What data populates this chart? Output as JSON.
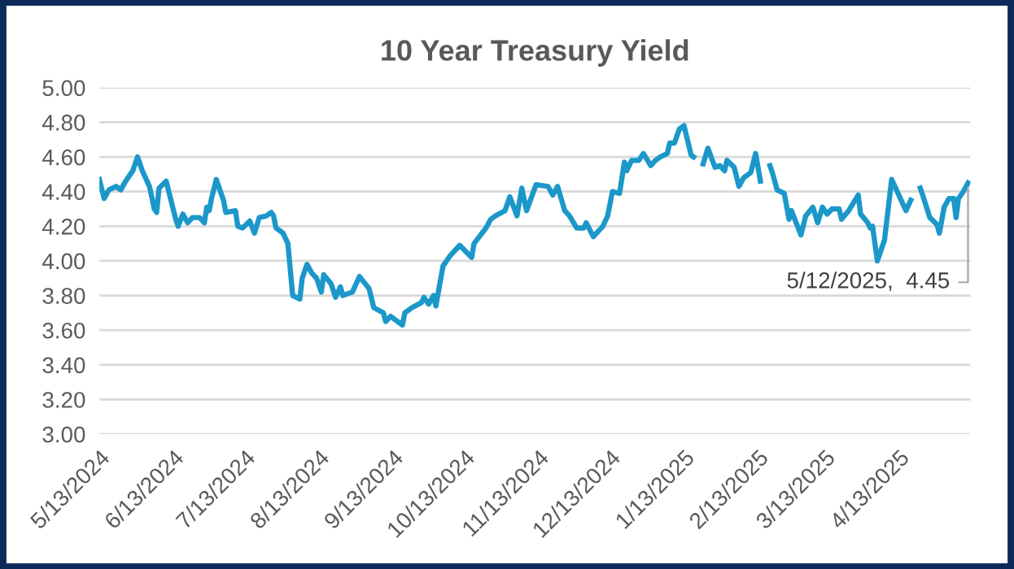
{
  "chart_data": {
    "type": "line",
    "title": "10 Year Treasury Yield",
    "x": [
      "2024-05-13",
      "2024-05-15",
      "2024-05-17",
      "2024-05-20",
      "2024-05-22",
      "2024-05-24",
      "2024-05-27",
      "2024-05-29",
      "2024-05-31",
      "2024-06-03",
      "2024-06-05",
      "2024-06-06",
      "2024-06-07",
      "2024-06-10",
      "2024-06-14",
      "2024-06-15",
      "2024-06-17",
      "2024-06-19",
      "2024-06-21",
      "2024-06-24",
      "2024-06-26",
      "2024-06-27",
      "2024-06-28",
      "2024-06-29",
      "2024-07-01",
      "2024-07-04",
      "2024-07-05",
      "2024-07-09",
      "2024-07-10",
      "2024-07-12",
      "2024-07-15",
      "2024-07-17",
      "2024-07-19",
      "2024-07-22",
      "2024-07-24",
      "2024-07-25",
      "2024-07-26",
      "2024-07-29",
      "2024-07-31",
      "2024-08-02",
      "2024-08-05",
      "2024-08-06",
      "2024-08-08",
      "2024-08-10",
      "2024-08-12",
      "2024-08-14",
      "2024-08-15",
      "2024-08-18",
      "2024-08-20",
      "2024-08-22",
      "2024-08-23",
      "2024-08-27",
      "2024-08-30",
      "2024-09-03",
      "2024-09-05",
      "2024-09-09",
      "2024-09-10",
      "2024-09-12",
      "2024-09-17",
      "2024-09-18",
      "2024-09-21",
      "2024-09-25",
      "2024-09-26",
      "2024-09-28",
      "2024-09-30",
      "2024-10-01",
      "2024-10-04",
      "2024-10-07",
      "2024-10-11",
      "2024-10-16",
      "2024-10-17",
      "2024-10-22",
      "2024-10-24",
      "2024-10-26",
      "2024-10-30",
      "2024-11-01",
      "2024-11-04",
      "2024-11-06",
      "2024-11-08",
      "2024-11-12",
      "2024-11-17",
      "2024-11-19",
      "2024-11-21",
      "2024-11-24",
      "2024-11-26",
      "2024-11-29",
      "2024-12-02",
      "2024-12-03",
      "2024-12-06",
      "2024-12-10",
      "2024-12-12",
      "2024-12-14",
      "2024-12-17",
      "2024-12-19",
      "2024-12-20",
      "2024-12-22",
      "2024-12-25",
      "2024-12-27",
      "2024-12-30",
      "2025-01-01",
      "2025-01-03",
      "2025-01-06",
      "2025-01-07",
      "2025-01-09",
      "2025-01-11",
      "2025-01-13",
      "2025-01-16",
      "2025-01-17",
      "2025-01-20",
      "2025-01-21",
      "2025-01-23",
      "2025-01-26",
      "2025-01-28",
      "2025-01-30",
      "2025-01-31",
      "2025-02-03",
      "2025-02-05",
      "2025-02-07",
      "2025-02-10",
      "2025-02-12",
      "2025-02-14",
      "2025-02-17",
      "2025-02-18",
      "2025-02-19",
      "2025-02-21",
      "2025-02-24",
      "2025-02-26",
      "2025-02-27",
      "2025-03-03",
      "2025-03-05",
      "2025-03-08",
      "2025-03-10",
      "2025-03-12",
      "2025-03-14",
      "2025-03-16",
      "2025-03-19",
      "2025-03-20",
      "2025-03-23",
      "2025-03-27",
      "2025-03-28",
      "2025-03-31",
      "2025-04-01",
      "2025-04-02",
      "2025-04-04",
      "2025-04-07",
      "2025-04-10",
      "2025-04-13",
      "2025-04-16",
      "2025-04-18",
      "2025-04-20",
      "2025-04-22",
      "2025-04-23",
      "2025-04-26",
      "2025-04-29",
      "2025-04-30",
      "2025-05-02",
      "2025-05-04",
      "2025-05-06",
      "2025-05-07",
      "2025-05-08",
      "2025-05-10",
      "2025-05-12"
    ],
    "series": [
      {
        "color": "#1b98c9",
        "values": [
          4.47,
          4.36,
          4.41,
          4.43,
          4.41,
          4.46,
          4.52,
          4.6,
          4.52,
          4.43,
          4.3,
          4.28,
          4.42,
          4.46,
          4.24,
          4.2,
          4.27,
          4.22,
          4.25,
          4.25,
          4.22,
          4.31,
          4.29,
          4.36,
          4.47,
          4.35,
          4.28,
          4.29,
          4.2,
          4.19,
          4.23,
          4.16,
          4.25,
          4.26,
          4.28,
          4.26,
          4.19,
          4.16,
          4.1,
          3.8,
          3.78,
          3.9,
          3.98,
          3.93,
          3.9,
          3.82,
          3.92,
          3.87,
          3.79,
          3.85,
          3.8,
          3.82,
          3.91,
          3.84,
          3.73,
          3.7,
          3.65,
          3.68,
          3.63,
          3.7,
          3.73,
          3.76,
          3.79,
          3.75,
          3.8,
          3.74,
          3.97,
          4.03,
          4.09,
          4.02,
          4.1,
          4.19,
          4.24,
          4.26,
          4.29,
          4.37,
          4.26,
          4.42,
          4.29,
          4.44,
          4.43,
          4.38,
          4.43,
          4.29,
          4.26,
          4.19,
          4.19,
          4.22,
          4.14,
          4.2,
          4.26,
          4.4,
          4.39,
          4.57,
          4.52,
          4.58,
          4.58,
          4.62,
          4.55,
          4.58,
          4.6,
          4.62,
          4.68,
          4.68,
          4.76,
          4.78,
          4.61,
          4.6,
          null,
          4.56,
          4.65,
          4.54,
          4.55,
          4.52,
          4.58,
          4.54,
          4.43,
          4.48,
          4.51,
          4.62,
          4.46,
          null,
          4.55,
          4.51,
          4.41,
          4.39,
          4.24,
          4.29,
          4.15,
          4.26,
          4.31,
          4.22,
          4.31,
          4.27,
          4.3,
          4.3,
          4.24,
          4.29,
          4.38,
          4.27,
          4.22,
          4.19,
          4.2,
          4.0,
          4.12,
          4.47,
          4.38,
          4.29,
          4.35,
          null,
          4.42,
          4.38,
          4.25,
          4.21,
          4.16,
          4.31,
          4.36,
          4.36,
          4.25,
          4.36,
          4.4,
          4.45
        ]
      }
    ],
    "ylim": [
      3.0,
      5.0
    ],
    "yticks": [
      {
        "value": 3.0,
        "label": "3.00"
      },
      {
        "value": 3.2,
        "label": "3.20"
      },
      {
        "value": 3.4,
        "label": "3.40"
      },
      {
        "value": 3.6,
        "label": "3.60"
      },
      {
        "value": 3.8,
        "label": "3.80"
      },
      {
        "value": 4.0,
        "label": "4.00"
      },
      {
        "value": 4.2,
        "label": "4.20"
      },
      {
        "value": 4.4,
        "label": "4.40"
      },
      {
        "value": 4.6,
        "label": "4.60"
      },
      {
        "value": 4.8,
        "label": "4.80"
      },
      {
        "value": 5.0,
        "label": "5.00"
      }
    ],
    "xlim": [
      "2024-05-13",
      "2025-05-13"
    ],
    "xticks": [
      {
        "value": "2024-05-13",
        "label": "5/13/2024"
      },
      {
        "value": "2024-06-13",
        "label": "6/13/2024"
      },
      {
        "value": "2024-07-13",
        "label": "7/13/2024"
      },
      {
        "value": "2024-08-13",
        "label": "8/13/2024"
      },
      {
        "value": "2024-09-13",
        "label": "9/13/2024"
      },
      {
        "value": "2024-10-13",
        "label": "10/13/2024"
      },
      {
        "value": "2024-11-13",
        "label": "11/13/2024"
      },
      {
        "value": "2024-12-13",
        "label": "12/13/2024"
      },
      {
        "value": "2025-01-13",
        "label": "1/13/2025"
      },
      {
        "value": "2025-02-13",
        "label": "2/13/2025"
      },
      {
        "value": "2025-03-13",
        "label": "3/13/2025"
      },
      {
        "value": "2025-04-13",
        "label": "4/13/2025"
      }
    ],
    "grid": "y",
    "legend": false,
    "marker": "none",
    "line_style": "solid",
    "annotations": [
      {
        "text": "5/12/2025,  4.45",
        "x": "2025-05-12",
        "y": 4.45
      }
    ]
  }
}
